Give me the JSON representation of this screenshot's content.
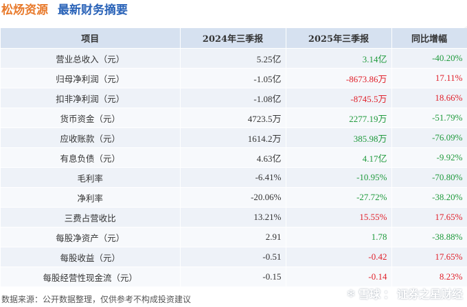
{
  "header": {
    "company": "松炀资源",
    "subtitle": "最新财务摘要"
  },
  "table": {
    "columns": [
      "项目",
      "2024年三季报",
      "2025年三季报",
      "同比增幅"
    ],
    "rows": [
      {
        "item": "营业总收入（元）",
        "y2024": "5.25亿",
        "y2025": "3.14亿",
        "y2025_color": "green",
        "yoy": "-40.20%",
        "yoy_color": "green"
      },
      {
        "item": "归母净利润（元）",
        "y2024": "-1.05亿",
        "y2025": "-8673.86万",
        "y2025_color": "red",
        "yoy": "17.11%",
        "yoy_color": "red"
      },
      {
        "item": "扣非净利润（元）",
        "y2024": "-1.08亿",
        "y2025": "-8745.5万",
        "y2025_color": "red",
        "yoy": "18.66%",
        "yoy_color": "red"
      },
      {
        "item": "货币资金（元）",
        "y2024": "4723.5万",
        "y2025": "2277.19万",
        "y2025_color": "green",
        "yoy": "-51.79%",
        "yoy_color": "green"
      },
      {
        "item": "应收账款（元）",
        "y2024": "1614.2万",
        "y2025": "385.98万",
        "y2025_color": "green",
        "yoy": "-76.09%",
        "yoy_color": "green"
      },
      {
        "item": "有息负债（元）",
        "y2024": "4.63亿",
        "y2025": "4.17亿",
        "y2025_color": "green",
        "yoy": "-9.92%",
        "yoy_color": "green"
      },
      {
        "item": "毛利率",
        "y2024": "-6.41%",
        "y2025": "-10.95%",
        "y2025_color": "green",
        "yoy": "-70.80%",
        "yoy_color": "green"
      },
      {
        "item": "净利率",
        "y2024": "-20.06%",
        "y2025": "-27.72%",
        "y2025_color": "green",
        "yoy": "-38.20%",
        "yoy_color": "green"
      },
      {
        "item": "三费占营收比",
        "y2024": "13.21%",
        "y2025": "15.55%",
        "y2025_color": "red",
        "yoy": "17.65%",
        "yoy_color": "red"
      },
      {
        "item": "每股净资产（元）",
        "y2024": "2.91",
        "y2025": "1.78",
        "y2025_color": "green",
        "yoy": "-38.88%",
        "yoy_color": "green"
      },
      {
        "item": "每股收益（元）",
        "y2024": "-0.51",
        "y2025": "-0.42",
        "y2025_color": "red",
        "yoy": "17.65%",
        "yoy_color": "red"
      },
      {
        "item": "每股经营性现金流（元）",
        "y2024": "-0.15",
        "y2025": "-0.14",
        "y2025_color": "red",
        "yoy": "8.23%",
        "yoy_color": "red"
      }
    ]
  },
  "footer": {
    "source": "数据来源：公开数据整理，仅供参考不构成投资建议"
  },
  "brand": {
    "platform": "雪球",
    "separator": "：",
    "name": "证券之星财经",
    "logo_icon": "snowball-icon"
  },
  "watermark": {
    "text": "证券之星"
  },
  "colors": {
    "header_company": "#e8792a",
    "header_subtitle": "#2a63b8",
    "table_header_bg": "#d6e1f0",
    "up": "#e0202a",
    "down": "#1f9a3c"
  }
}
